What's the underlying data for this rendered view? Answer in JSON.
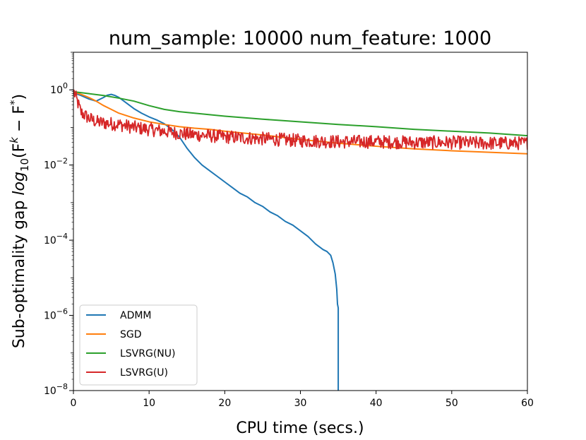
{
  "chart_data": {
    "type": "line",
    "title": "num_sample: 10000 num_feature: 1000",
    "xlabel": "CPU time (secs.)",
    "ylabel": {
      "prefix": "Sub-optimality gap ",
      "log_base": "log",
      "log_sub": "10",
      "open": "(F",
      "k_sup": "k",
      "minus": " − F",
      "star_sup": "*",
      "close": ")"
    },
    "xlim": [
      0,
      60
    ],
    "ylim_log10": [
      -8,
      1
    ],
    "yscale": "log",
    "x_ticks": [
      0,
      10,
      20,
      30,
      40,
      50,
      60
    ],
    "x_tick_labels": [
      "0",
      "10",
      "20",
      "30",
      "40",
      "50",
      "60"
    ],
    "y_ticks": [
      {
        "exp": 0,
        "base": "10",
        "sup": "0"
      },
      {
        "exp": -2,
        "base": "10",
        "sup": "−2"
      },
      {
        "exp": -4,
        "base": "10",
        "sup": "−4"
      },
      {
        "exp": -6,
        "base": "10",
        "sup": "−6"
      },
      {
        "exp": -8,
        "base": "10",
        "sup": "−8"
      }
    ],
    "legend_position": "lower-left",
    "series": [
      {
        "name": "ADMM",
        "color": "#1f77b4",
        "x": [
          0,
          1,
          2,
          3,
          4,
          4.5,
          5,
          5.5,
          6,
          7,
          8,
          9,
          10,
          11,
          12,
          13,
          14,
          15,
          16,
          17,
          18,
          19,
          20,
          21,
          22,
          23,
          24,
          25,
          26,
          27,
          28,
          29,
          30,
          31,
          32,
          33,
          33.5,
          34,
          34.3,
          34.6,
          34.8,
          34.9,
          35,
          35,
          35
        ],
        "y": [
          -0.08,
          -0.15,
          -0.24,
          -0.3,
          -0.2,
          -0.14,
          -0.12,
          -0.15,
          -0.2,
          -0.35,
          -0.5,
          -0.62,
          -0.72,
          -0.8,
          -0.9,
          -1.05,
          -1.25,
          -1.55,
          -1.8,
          -2.0,
          -2.15,
          -2.3,
          -2.45,
          -2.6,
          -2.75,
          -2.85,
          -3.0,
          -3.1,
          -3.25,
          -3.35,
          -3.5,
          -3.6,
          -3.75,
          -3.9,
          -4.1,
          -4.25,
          -4.3,
          -4.4,
          -4.6,
          -4.9,
          -5.3,
          -5.7,
          -5.8,
          -7.0,
          -8.0
        ]
      },
      {
        "name": "SGD",
        "color": "#ff7f0e",
        "x": [
          0,
          1,
          2,
          3,
          4,
          5,
          6,
          8,
          10,
          12,
          14,
          16,
          18,
          20,
          25,
          30,
          35,
          40,
          45,
          50,
          55,
          60
        ],
        "y": [
          -0.05,
          -0.12,
          -0.2,
          -0.3,
          -0.42,
          -0.52,
          -0.62,
          -0.75,
          -0.85,
          -0.92,
          -0.98,
          -1.02,
          -1.05,
          -1.1,
          -1.2,
          -1.32,
          -1.42,
          -1.5,
          -1.57,
          -1.62,
          -1.66,
          -1.7
        ]
      },
      {
        "name": "LSVRG(NU)",
        "color": "#2ca02c",
        "x": [
          0,
          2,
          4,
          6,
          8,
          10,
          12,
          14,
          16,
          18,
          20,
          25,
          30,
          35,
          40,
          45,
          50,
          55,
          60
        ],
        "y": [
          -0.05,
          -0.1,
          -0.15,
          -0.22,
          -0.3,
          -0.42,
          -0.52,
          -0.58,
          -0.62,
          -0.66,
          -0.7,
          -0.78,
          -0.85,
          -0.92,
          -0.98,
          -1.05,
          -1.1,
          -1.15,
          -1.22
        ]
      },
      {
        "name": "LSVRG(U)",
        "color": "#d62728",
        "x": [
          0,
          0.5,
          1,
          2,
          3,
          4,
          6,
          8,
          10,
          15,
          20,
          25,
          30,
          35,
          40,
          45,
          50,
          55,
          60
        ],
        "y": [
          -0.02,
          -0.3,
          -0.6,
          -0.75,
          -0.85,
          -0.88,
          -0.92,
          -1.0,
          -1.05,
          -1.18,
          -1.25,
          -1.3,
          -1.35,
          -1.38,
          -1.38,
          -1.4,
          -1.4,
          -1.42,
          -1.42
        ],
        "noise_amplitude": 0.18
      }
    ]
  }
}
